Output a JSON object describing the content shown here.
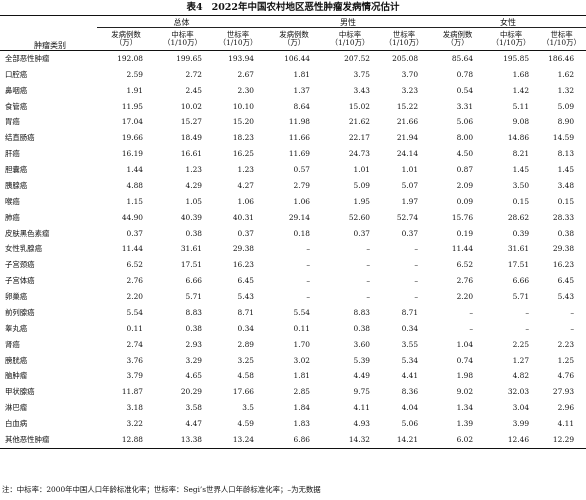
{
  "caption": {
    "table_number": "表4",
    "title": "2022年中国农村地区恶性肿瘤发病情况估计"
  },
  "header": {
    "row_label": "肿瘤类别",
    "groups": [
      "总体",
      "男性",
      "女性"
    ],
    "sub_columns": [
      {
        "line1": "发病例数",
        "line2": "（万）"
      },
      {
        "line1": "中标率",
        "line2": "（1/10万）"
      },
      {
        "line1": "世标率",
        "line2": "（1/10万）"
      }
    ]
  },
  "rows": [
    {
      "name": "全部恶性肿瘤",
      "values": [
        "192.08",
        "199.65",
        "193.94",
        "106.44",
        "207.52",
        "205.08",
        "85.64",
        "195.85",
        "186.46"
      ]
    },
    {
      "name": "口腔癌",
      "values": [
        "2.59",
        "2.72",
        "2.67",
        "1.81",
        "3.75",
        "3.70",
        "0.78",
        "1.68",
        "1.62"
      ]
    },
    {
      "name": "鼻咽癌",
      "values": [
        "1.91",
        "2.45",
        "2.30",
        "1.37",
        "3.43",
        "3.23",
        "0.54",
        "1.42",
        "1.32"
      ]
    },
    {
      "name": "食管癌",
      "values": [
        "11.95",
        "10.02",
        "10.10",
        "8.64",
        "15.02",
        "15.22",
        "3.31",
        "5.11",
        "5.09"
      ]
    },
    {
      "name": "胃癌",
      "values": [
        "17.04",
        "15.27",
        "15.20",
        "11.98",
        "21.62",
        "21.66",
        "5.06",
        "9.08",
        "8.90"
      ]
    },
    {
      "name": "结直肠癌",
      "values": [
        "19.66",
        "18.49",
        "18.23",
        "11.66",
        "22.17",
        "21.94",
        "8.00",
        "14.86",
        "14.59"
      ]
    },
    {
      "name": "肝癌",
      "values": [
        "16.19",
        "16.61",
        "16.25",
        "11.69",
        "24.73",
        "24.14",
        "4.50",
        "8.21",
        "8.13"
      ]
    },
    {
      "name": "胆囊癌",
      "values": [
        "1.44",
        "1.23",
        "1.23",
        "0.57",
        "1.01",
        "1.01",
        "0.87",
        "1.45",
        "1.45"
      ]
    },
    {
      "name": "胰腺癌",
      "values": [
        "4.88",
        "4.29",
        "4.27",
        "2.79",
        "5.09",
        "5.07",
        "2.09",
        "3.50",
        "3.48"
      ]
    },
    {
      "name": "喉癌",
      "values": [
        "1.15",
        "1.05",
        "1.06",
        "1.06",
        "1.95",
        "1.97",
        "0.09",
        "0.15",
        "0.15"
      ]
    },
    {
      "name": "肺癌",
      "values": [
        "44.90",
        "40.39",
        "40.31",
        "29.14",
        "52.60",
        "52.74",
        "15.76",
        "28.62",
        "28.33"
      ]
    },
    {
      "name": "皮肤黑色素瘤",
      "values": [
        "0.37",
        "0.38",
        "0.37",
        "0.18",
        "0.37",
        "0.37",
        "0.19",
        "0.39",
        "0.38"
      ]
    },
    {
      "name": "女性乳腺癌",
      "values": [
        "11.44",
        "31.61",
        "29.38",
        "–",
        "–",
        "–",
        "11.44",
        "31.61",
        "29.38"
      ]
    },
    {
      "name": "子宫颈癌",
      "values": [
        "6.52",
        "17.51",
        "16.23",
        "–",
        "–",
        "–",
        "6.52",
        "17.51",
        "16.23"
      ]
    },
    {
      "name": "子宫体癌",
      "values": [
        "2.76",
        "6.66",
        "6.45",
        "–",
        "–",
        "–",
        "2.76",
        "6.66",
        "6.45"
      ]
    },
    {
      "name": "卵巢癌",
      "values": [
        "2.20",
        "5.71",
        "5.43",
        "–",
        "–",
        "–",
        "2.20",
        "5.71",
        "5.43"
      ]
    },
    {
      "name": "前列腺癌",
      "values": [
        "5.54",
        "8.83",
        "8.71",
        "5.54",
        "8.83",
        "8.71",
        "–",
        "–",
        "–"
      ]
    },
    {
      "name": "睾丸癌",
      "values": [
        "0.11",
        "0.38",
        "0.34",
        "0.11",
        "0.38",
        "0.34",
        "–",
        "–",
        "–"
      ]
    },
    {
      "name": "肾癌",
      "values": [
        "2.74",
        "2.93",
        "2.89",
        "1.70",
        "3.60",
        "3.55",
        "1.04",
        "2.25",
        "2.23"
      ]
    },
    {
      "name": "膀胱癌",
      "values": [
        "3.76",
        "3.29",
        "3.25",
        "3.02",
        "5.39",
        "5.34",
        "0.74",
        "1.27",
        "1.25"
      ]
    },
    {
      "name": "脑肿瘤",
      "values": [
        "3.79",
        "4.65",
        "4.58",
        "1.81",
        "4.49",
        "4.41",
        "1.98",
        "4.82",
        "4.76"
      ]
    },
    {
      "name": "甲状腺癌",
      "values": [
        "11.87",
        "20.29",
        "17.66",
        "2.85",
        "9.75",
        "8.36",
        "9.02",
        "32.03",
        "27.93"
      ]
    },
    {
      "name": "淋巴瘤",
      "values": [
        "3.18",
        "3.58",
        "3.5",
        "1.84",
        "4.11",
        "4.04",
        "1.34",
        "3.04",
        "2.96"
      ]
    },
    {
      "name": "白血病",
      "values": [
        "3.22",
        "4.47",
        "4.59",
        "1.83",
        "4.93",
        "5.06",
        "1.39",
        "3.99",
        "4.11"
      ]
    },
    {
      "name": "其他恶性肿瘤",
      "values": [
        "12.88",
        "13.38",
        "13.24",
        "6.86",
        "14.32",
        "14.21",
        "6.02",
        "12.46",
        "12.29"
      ]
    }
  ],
  "footnote": "注：中标率：2000年中国人口年龄标准化率；世标率：Segi’s世界人口年龄标准化率；–为无数据"
}
